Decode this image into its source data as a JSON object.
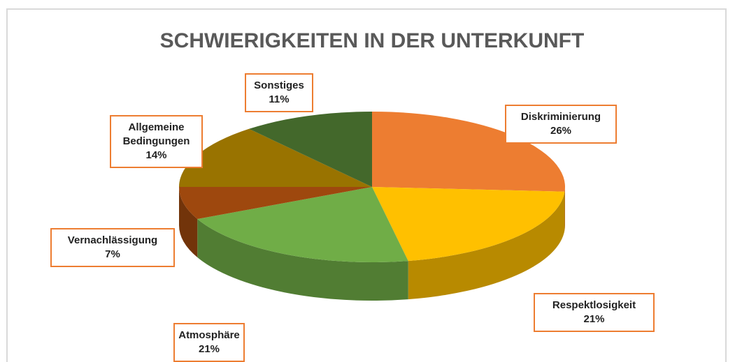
{
  "chart_data": {
    "type": "pie",
    "title": "SCHWIERIGKEITEN IN DER UNTERKUNFT",
    "categories": [
      "Diskriminierung",
      "Respektlosigkeit",
      "Atmosphäre",
      "Vernachlässigung",
      "Allgemeine Bedingungen",
      "Sonstiges"
    ],
    "values": [
      26,
      21,
      21,
      7,
      14,
      11
    ],
    "value_labels": [
      "26%",
      "21%",
      "21%",
      "7%",
      "14%",
      "11%"
    ],
    "colors": [
      "#ED7D31",
      "#FFC000",
      "#70AD47",
      "#9E480E",
      "#997300",
      "#43682B"
    ]
  }
}
